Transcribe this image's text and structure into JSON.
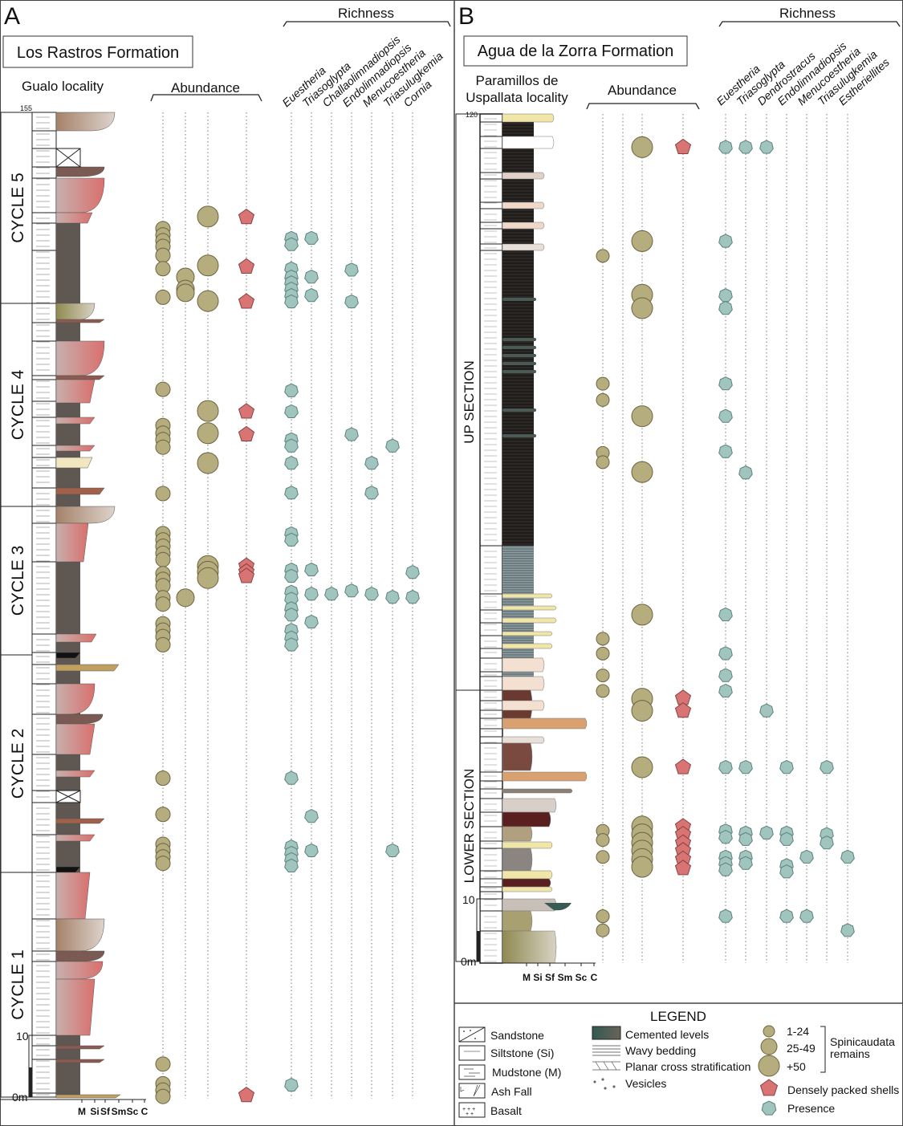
{
  "panel_a": {
    "letter": "A",
    "formation": "Los Rastros Formation",
    "locality": "Gualo locality",
    "abundance_label": "Abundance",
    "richness_label": "Richness",
    "cycles": [
      "CYCLE 5",
      "CYCLE 4",
      "CYCLE 3",
      "CYCLE 2",
      "CYCLE 1"
    ],
    "depth_labels": {
      "top": "155",
      "mid": "10",
      "base": "0m"
    },
    "grain_size": [
      "M",
      "Si",
      "Sf",
      "Sm",
      "Sc",
      "C"
    ],
    "taxa": [
      "Euestheria",
      "Triasoglypta",
      "Challaolimnadiopsis",
      "Endolimnadiopsis",
      "Menucoestheria",
      "Triasulugkemia",
      "Cornia"
    ],
    "abundance_m": {
      "1-24": [
        136.7,
        135.7,
        134.8,
        133.9,
        132.5,
        130.4,
        125.9,
        111.4,
        105.7,
        104.5,
        103.5,
        102.3,
        95.0,
        88.7,
        87.7,
        86.7,
        85.6,
        84.6,
        82.4,
        81.5,
        80.5,
        78.6,
        77.6,
        74.5,
        73.5,
        72.5,
        71.2,
        50.2,
        44.5,
        39.8,
        38.8,
        37.8,
        36.8,
        5.2,
        2.1,
        1.1,
        0.1
      ],
      "25-49": [
        129.1,
        127.2,
        126.6,
        78.6
      ],
      "+50": [
        138.6,
        130.9,
        125.3,
        108.0,
        104.5,
        99.8,
        83.6,
        82.7,
        81.7
      ],
      "densely_packed": [
        138.5,
        130.7,
        125.2,
        107.9,
        104.3,
        83.6,
        82.7,
        82.0,
        0.3
      ]
    },
    "presence_m": [
      [
        135.2,
        134.2,
        130.4,
        129.1,
        128.2,
        127.2,
        126.2,
        125.2,
        111.2,
        107.9,
        103.5,
        102.5,
        99.8,
        95.1,
        88.7,
        87.7,
        83.0,
        82.0,
        79.5,
        78.4,
        76.9,
        75.9,
        73.5,
        72.3,
        71.2,
        50.2,
        39.4,
        38.4,
        37.4,
        36.4,
        1.9
      ],
      [
        135.2,
        129.1,
        126.2,
        83.0,
        79.2,
        74.8,
        44.2,
        38.8
      ],
      [
        79.2
      ],
      [
        130.2,
        125.2,
        104.3,
        79.7
      ],
      [
        99.8,
        95.1,
        79.2
      ],
      [
        102.5,
        78.7,
        38.8
      ],
      [
        82.6,
        78.7
      ]
    ]
  },
  "panel_b": {
    "letter": "B",
    "formation": "Agua de la Zorra Formation",
    "locality_line1": "Paramillos de",
    "locality_line2": "Uspallata locality",
    "abundance_label": "Abundance",
    "richness_label": "Richness",
    "sections": [
      "UP SECTION",
      "LOWER SECTION"
    ],
    "depth_labels": {
      "top": "120",
      "mid": "10",
      "base": "0m"
    },
    "grain_size": [
      "M",
      "Si",
      "Sf",
      "Sm",
      "Sc",
      "C"
    ],
    "taxa": [
      "Euestheria",
      "Triasoglypta",
      "Dendrostracus",
      "Endolimnadiopsis",
      "Menucoestheria",
      "Triasulugkemia",
      "Estheriellites"
    ],
    "abundance_m": {
      "1-24": [
        99.9,
        81.8,
        79.5,
        72.0,
        70.7,
        45.7,
        43.6,
        40.5,
        38.3,
        18.5,
        17.2,
        14.8,
        6.4,
        4.4
      ],
      "25-49": [],
      "+50": [
        115.3,
        102.0,
        94.4,
        92.5,
        77.2,
        69.3,
        49.1,
        37.2,
        35.5,
        27.5,
        19.1,
        18.0,
        16.8,
        15.7,
        14.5,
        13.4
      ],
      "densely_packed": [
        115.3,
        37.3,
        35.5,
        27.5,
        19.1,
        18.0,
        16.8,
        15.7,
        14.5,
        13.2
      ]
    },
    "presence_m": [
      [
        115.3,
        102.0,
        94.3,
        92.5,
        81.8,
        77.2,
        72.2,
        49.1,
        43.6,
        40.5,
        38.3,
        27.5,
        18.5,
        17.6,
        14.8,
        13.9,
        13.0,
        6.4
      ],
      [
        115.3,
        69.2,
        27.5,
        18.2,
        17.3,
        14.8,
        13.9
      ],
      [
        115.3,
        35.5,
        18.2
      ],
      [
        27.5,
        18.2,
        17.3,
        13.6,
        12.7,
        6.4
      ],
      [
        14.8,
        6.4
      ],
      [
        27.5,
        18.0,
        16.8
      ],
      [
        14.8,
        4.4
      ]
    ]
  },
  "legend": {
    "title": "LEGEND",
    "lithology": [
      "Sandstone",
      "Siltstone (Si)",
      "Mudstone (M)",
      "Ash Fall",
      "Basalt"
    ],
    "structures": [
      "Cemented levels",
      "Wavy bedding",
      "Planar cross stratification",
      "Vesicles"
    ],
    "abundance_classes": [
      "1-24",
      "25-49",
      "+50"
    ],
    "group_label_line1": "Spinicaudata",
    "group_label_line2": "remains",
    "densely_packed": "Densely packed shells",
    "presence": "Presence"
  },
  "colors": {
    "abundance_fill": "#b5ad7e",
    "abundance_stroke": "#6b6440",
    "dense_fill": "#d97474",
    "dense_stroke": "#8a4040",
    "presence_fill": "#9fc5be",
    "presence_stroke": "#5d817c",
    "mudstone": "#5e5752",
    "black_shale": "#2b2725"
  }
}
